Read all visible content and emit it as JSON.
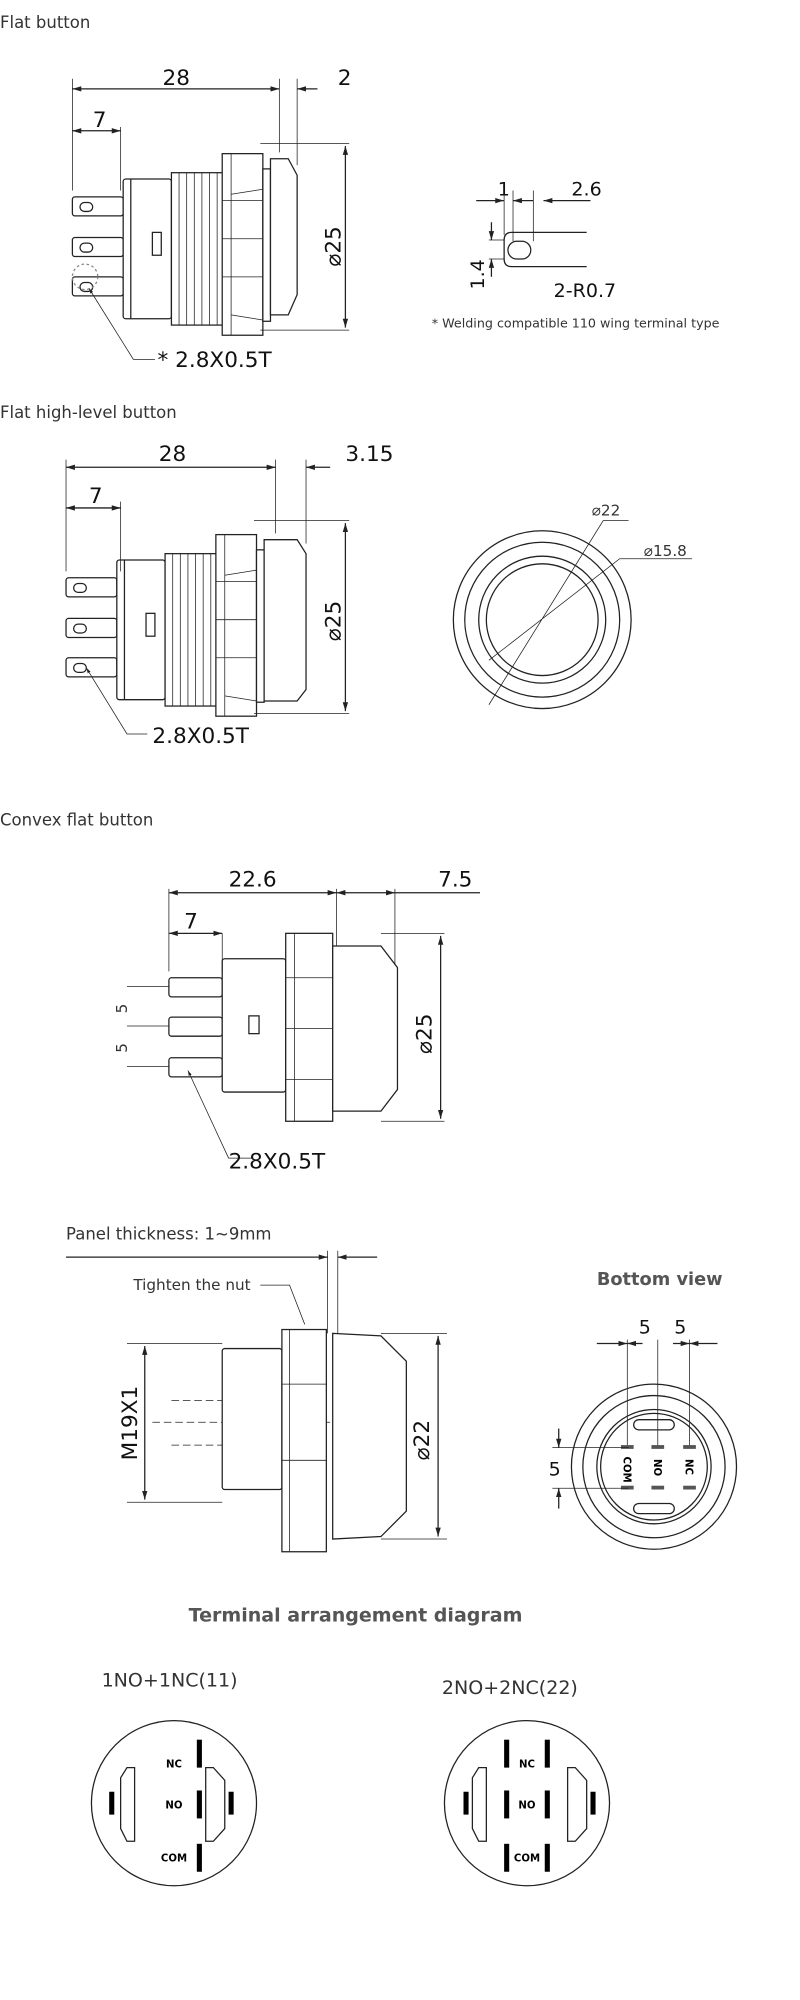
{
  "sections": [
    {
      "title": "Flat button",
      "dims": {
        "length": "28",
        "cap": "2",
        "terminal": "7",
        "diameter": "⌀25"
      },
      "terminal_label": "* 2.8X0.5T"
    },
    {
      "title": "Flat high-level button",
      "dims": {
        "length": "28",
        "cap": "3.15",
        "terminal": "7",
        "diameter": "⌀25"
      },
      "terminal_label": "2.8X0.5T",
      "front_dims": {
        "outer": "⌀22",
        "inner": "⌀15.8"
      }
    },
    {
      "title": "Convex flat button",
      "dims": {
        "length": "22.6",
        "cap": "7.5",
        "terminal": "7",
        "diameter": "⌀25",
        "pitch1": "5",
        "pitch2": "5"
      },
      "terminal_label": "2.8X0.5T"
    }
  ],
  "detail": {
    "dim_a": "1",
    "dim_b": "2.6",
    "dim_h": "1.4",
    "radius": "2-R0.7",
    "note": "* Welding compatible 110 wing terminal type"
  },
  "panel": {
    "thickness": "Panel thickness: 1~9mm",
    "nut": "Tighten the nut",
    "thread": "M19X1",
    "diameter": "⌀22"
  },
  "bottom_view": {
    "title": "Bottom view",
    "dim_x1": "5",
    "dim_x2": "5",
    "dim_y": "5",
    "pins": [
      "COM",
      "NO",
      "NC"
    ]
  },
  "terminal_diagram": {
    "title": "Terminal arrangement diagram",
    "variants": [
      {
        "label": "1NO+1NC(11)",
        "pins": [
          "NC",
          "NO",
          "COM"
        ]
      },
      {
        "label": "2NO+2NC(22)",
        "pins": [
          "NC",
          "NO",
          "COM"
        ]
      }
    ]
  }
}
